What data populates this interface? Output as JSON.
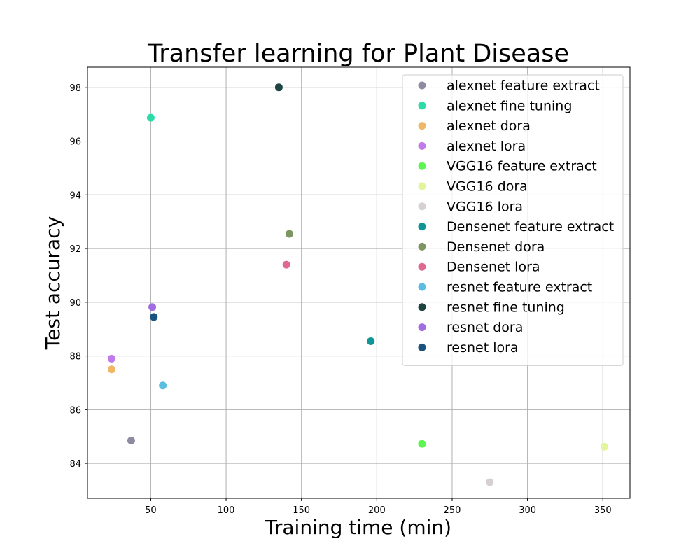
{
  "chart_data": {
    "type": "scatter",
    "title": "Transfer learning for Plant Disease",
    "xlabel": "Training time (min)",
    "ylabel": "Test accuracy",
    "xlim": [
      8,
      368
    ],
    "ylim": [
      82.7,
      98.75
    ],
    "xticks": [
      50,
      100,
      150,
      200,
      250,
      300,
      350
    ],
    "yticks": [
      84,
      86,
      88,
      90,
      92,
      94,
      96,
      98
    ],
    "grid": true,
    "legend_position": "top-right",
    "series": [
      {
        "name": "alexnet feature extract",
        "color": "#8e8aa1",
        "points": [
          {
            "x": 37,
            "y": 84.85
          }
        ]
      },
      {
        "name": "alexnet fine tuning",
        "color": "#2bdba8",
        "points": [
          {
            "x": 50,
            "y": 96.87
          }
        ]
      },
      {
        "name": "alexnet dora",
        "color": "#f0b866",
        "points": [
          {
            "x": 24,
            "y": 87.5
          }
        ]
      },
      {
        "name": "alexnet lora",
        "color": "#c07bea",
        "points": [
          {
            "x": 24,
            "y": 87.9
          }
        ]
      },
      {
        "name": "VGG16 feature extract",
        "color": "#5df54f",
        "points": [
          {
            "x": 230,
            "y": 84.73
          }
        ]
      },
      {
        "name": "VGG16 dora",
        "color": "#e2f59a",
        "points": [
          {
            "x": 351,
            "y": 84.62
          }
        ]
      },
      {
        "name": "VGG16 lora",
        "color": "#d6d0d3",
        "points": [
          {
            "x": 275,
            "y": 83.3
          }
        ]
      },
      {
        "name": "Densenet feature extract",
        "color": "#0e9696",
        "points": [
          {
            "x": 196,
            "y": 88.55
          }
        ]
      },
      {
        "name": "Densenet dora",
        "color": "#7d9560",
        "points": [
          {
            "x": 142,
            "y": 92.55
          }
        ]
      },
      {
        "name": "Densenet lora",
        "color": "#e06990",
        "points": [
          {
            "x": 140,
            "y": 91.4
          }
        ]
      },
      {
        "name": "resnet feature extract",
        "color": "#5bbde0",
        "points": [
          {
            "x": 58,
            "y": 86.9
          }
        ]
      },
      {
        "name": "resnet fine tuning",
        "color": "#1e4442",
        "points": [
          {
            "x": 135,
            "y": 98.0
          }
        ]
      },
      {
        "name": "resnet dora",
        "color": "#a06ee0",
        "points": [
          {
            "x": 51,
            "y": 89.82
          }
        ]
      },
      {
        "name": "resnet lora",
        "color": "#1a5380",
        "points": [
          {
            "x": 52,
            "y": 89.45
          }
        ]
      }
    ]
  }
}
